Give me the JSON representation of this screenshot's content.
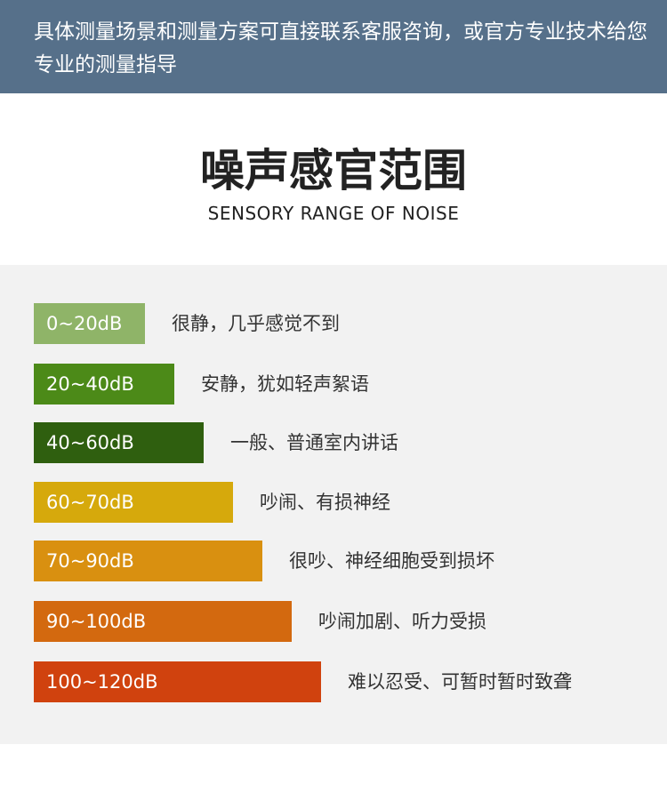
{
  "header": {
    "text": "具体测量场景和测量方案可直接联系客服咨询，或官方专业技术给您专业的测量指导"
  },
  "title": "噪声感官范围",
  "subtitle": "SENSORY RANGE OF NOISE",
  "rows": [
    {
      "range": "0~20dB",
      "description": "很静，几乎感觉不到",
      "color": "#8fb468"
    },
    {
      "range": "20~40dB",
      "description": "安静，犹如轻声絮语",
      "color": "#4c8a18"
    },
    {
      "range": "40~60dB",
      "description": "一般、普通室内讲话",
      "color": "#2f5f0f"
    },
    {
      "range": "60~70dB",
      "description": "吵闹、有损神经",
      "color": "#d6a90c"
    },
    {
      "range": "70~90dB",
      "description": "很吵、神经细胞受到损坏",
      "color": "#d99010"
    },
    {
      "range": "90~100dB",
      "description": "吵闹加剧、听力受损",
      "color": "#d3690f"
    },
    {
      "range": "100~120dB",
      "description": "难以忍受、可暂时暂时致聋",
      "color": "#d0420e"
    }
  ]
}
